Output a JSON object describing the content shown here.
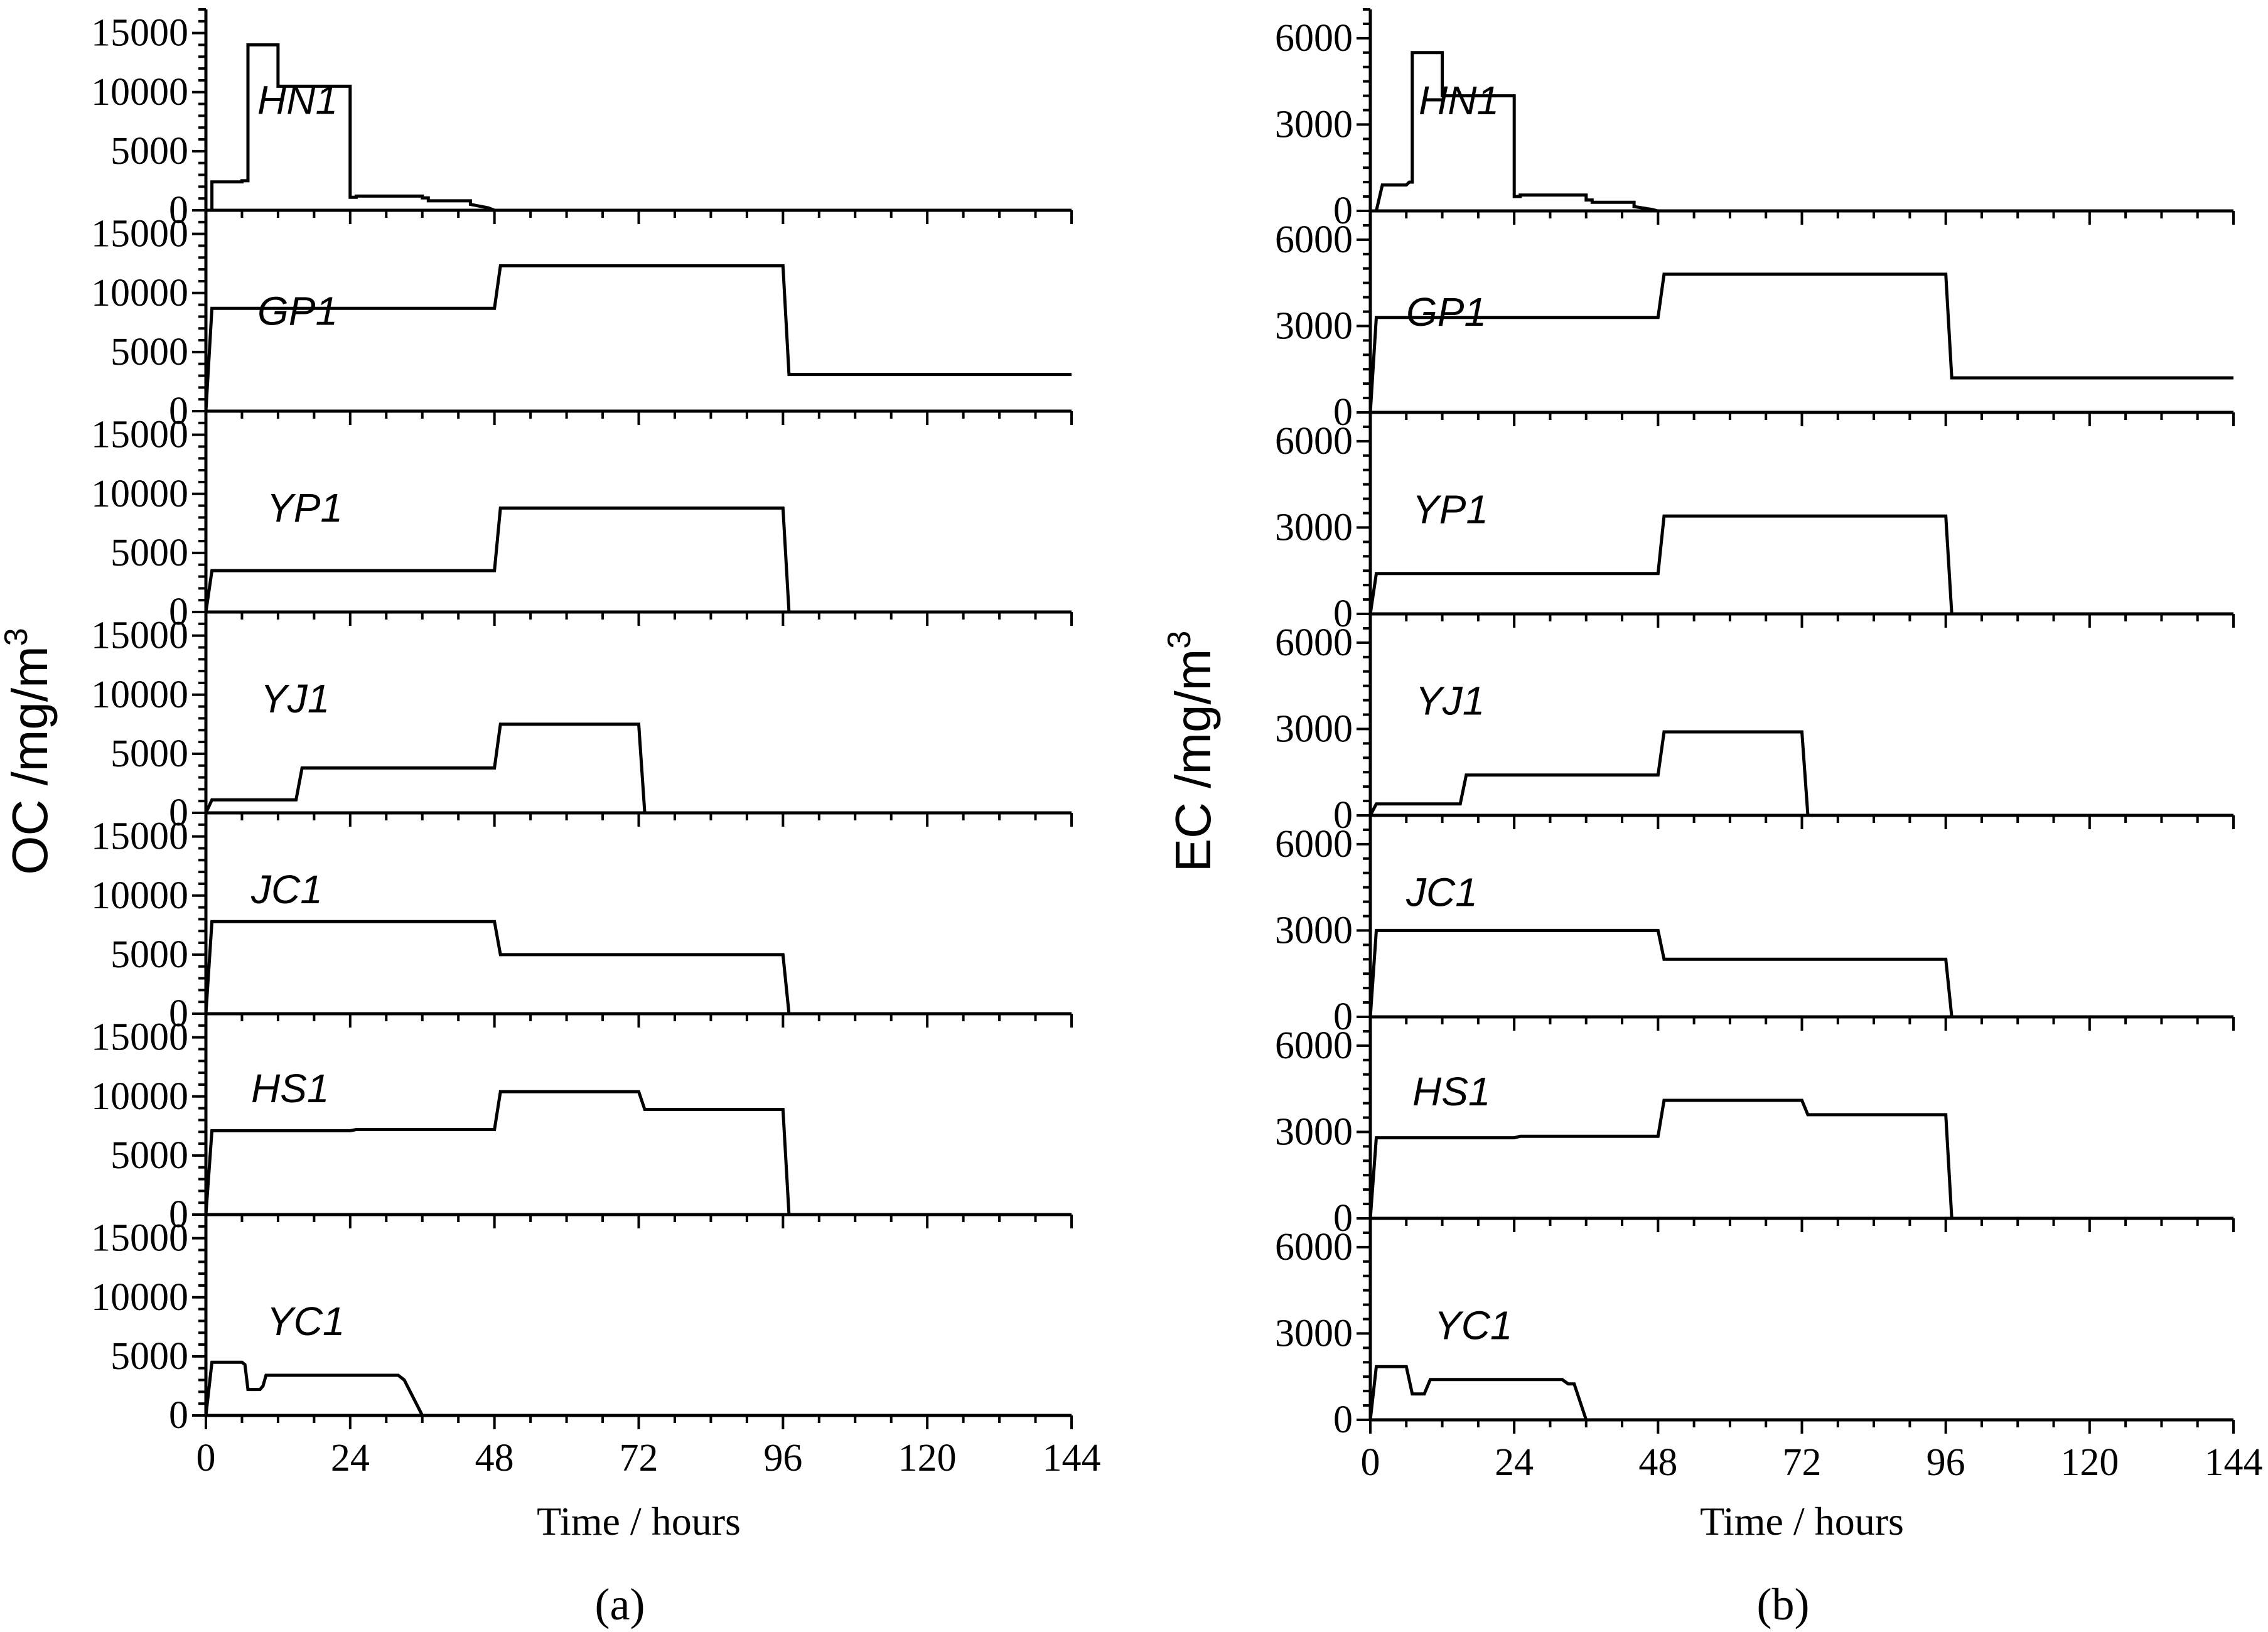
{
  "chart_data": [
    {
      "type": "line",
      "panel_label": "(a)",
      "ylabel": "OC /mg/m",
      "ylabel_sup": "3",
      "xlabel": "Time / hours",
      "xlim": [
        0,
        144
      ],
      "xticks": [
        0,
        24,
        48,
        72,
        96,
        120,
        144
      ],
      "ylim": [
        0,
        17000
      ],
      "yticks": [
        0,
        5000,
        10000,
        15000
      ],
      "grid": false,
      "series": [
        {
          "name": "HN1",
          "x": [
            0,
            1,
            1,
            6,
            6,
            7,
            7,
            12,
            12,
            24,
            24,
            25,
            25,
            36,
            36,
            37,
            37,
            44,
            44,
            47,
            48
          ],
          "y": [
            0,
            0,
            2400,
            2400,
            2500,
            2500,
            14000,
            14000,
            10500,
            10500,
            1100,
            1100,
            1200,
            1200,
            1050,
            1050,
            800,
            800,
            500,
            200,
            0
          ]
        },
        {
          "name": "GP1",
          "x": [
            0,
            1,
            48,
            49,
            96,
            97,
            144
          ],
          "y": [
            0,
            8700,
            8700,
            12300,
            12300,
            3100,
            3100
          ]
        },
        {
          "name": "YP1",
          "x": [
            0,
            1,
            48,
            49,
            96,
            97
          ],
          "y": [
            0,
            3500,
            3500,
            8800,
            8800,
            0
          ]
        },
        {
          "name": "YJ1",
          "x": [
            0,
            1,
            15,
            16,
            48,
            49,
            72,
            73
          ],
          "y": [
            0,
            1100,
            1100,
            3800,
            3800,
            7500,
            7500,
            0
          ]
        },
        {
          "name": "JC1",
          "x": [
            0,
            1,
            48,
            49,
            96,
            97
          ],
          "y": [
            0,
            7800,
            7800,
            5000,
            5000,
            0
          ]
        },
        {
          "name": "HS1",
          "x": [
            0,
            1,
            24,
            25,
            48,
            49,
            72,
            73,
            96,
            97
          ],
          "y": [
            0,
            7100,
            7100,
            7200,
            7200,
            10400,
            10400,
            8900,
            8900,
            0
          ]
        },
        {
          "name": "YC1",
          "x": [
            0,
            1,
            6,
            6.5,
            7,
            7.5,
            9,
            9.5,
            10,
            10.5,
            32,
            33,
            36
          ],
          "y": [
            0,
            4500,
            4500,
            4300,
            2200,
            2200,
            2200,
            2500,
            3400,
            3400,
            3400,
            3000,
            0
          ]
        }
      ]
    },
    {
      "type": "line",
      "panel_label": "(b)",
      "ylabel": "EC /mg/m",
      "ylabel_sup": "3",
      "xlabel": "Time / hours",
      "xlim": [
        0,
        144
      ],
      "xticks": [
        0,
        24,
        48,
        72,
        96,
        120,
        144
      ],
      "ylim": [
        0,
        7000
      ],
      "yticks": [
        0,
        3000,
        6000
      ],
      "grid": false,
      "series": [
        {
          "name": "HN1",
          "x": [
            0,
            1,
            2,
            6,
            6.5,
            7,
            7,
            12,
            12,
            24,
            24,
            25,
            25,
            36,
            36,
            37,
            37,
            44,
            44,
            47,
            48
          ],
          "y": [
            0,
            0,
            900,
            900,
            1000,
            1000,
            5500,
            5500,
            4000,
            4000,
            500,
            500,
            550,
            550,
            380,
            380,
            300,
            300,
            150,
            50,
            0
          ]
        },
        {
          "name": "GP1",
          "x": [
            0,
            1,
            48,
            49,
            96,
            97,
            144
          ],
          "y": [
            0,
            3300,
            3300,
            4800,
            4800,
            1200,
            1200
          ]
        },
        {
          "name": "YP1",
          "x": [
            0,
            1,
            48,
            49,
            96,
            97
          ],
          "y": [
            0,
            1400,
            1400,
            3400,
            3400,
            0
          ]
        },
        {
          "name": "YJ1",
          "x": [
            0,
            1,
            15,
            16,
            48,
            49,
            72,
            73
          ],
          "y": [
            0,
            400,
            400,
            1400,
            1400,
            2900,
            2900,
            0
          ]
        },
        {
          "name": "JC1",
          "x": [
            0,
            1,
            48,
            49,
            96,
            97
          ],
          "y": [
            0,
            3000,
            3000,
            2000,
            2000,
            0
          ]
        },
        {
          "name": "HS1",
          "x": [
            0,
            1,
            24,
            25,
            48,
            49,
            72,
            73,
            96,
            97
          ],
          "y": [
            0,
            2800,
            2800,
            2850,
            2850,
            4100,
            4100,
            3600,
            3600,
            0
          ]
        },
        {
          "name": "YC1",
          "x": [
            0,
            1,
            6,
            7,
            9,
            10,
            32,
            33,
            34,
            36
          ],
          "y": [
            0,
            1850,
            1850,
            900,
            900,
            1400,
            1400,
            1250,
            1250,
            0
          ]
        }
      ]
    }
  ]
}
